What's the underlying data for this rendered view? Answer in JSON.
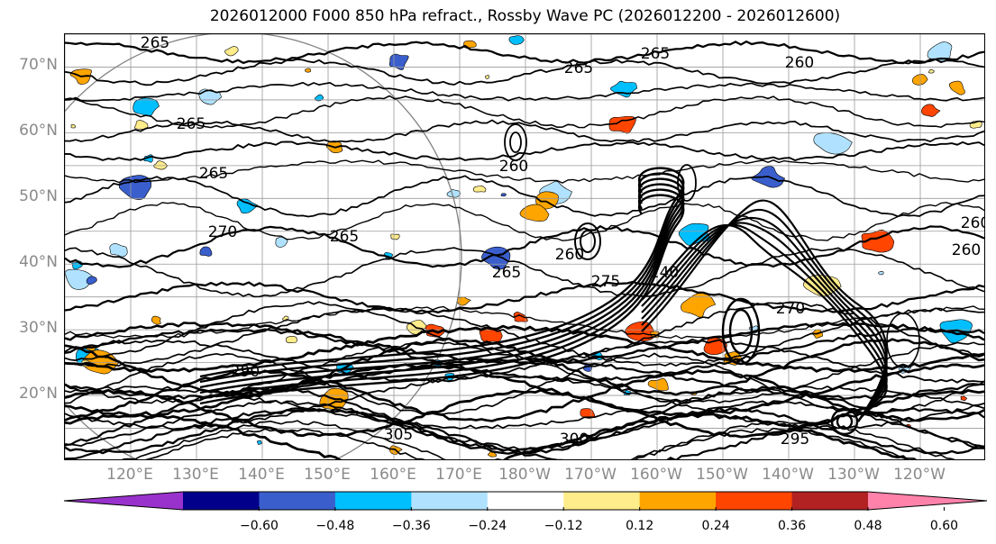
{
  "title": "2026012000 F000 850 hPa refract., Rossby Wave PC (2026012200 - 2026012600)",
  "lat_axis": {
    "labels": [
      "70°N",
      "60°N",
      "50°N",
      "40°N",
      "30°N",
      "20°N"
    ],
    "values": [
      70,
      60,
      50,
      40,
      30,
      20
    ],
    "range": [
      10,
      75
    ]
  },
  "lon_axis": {
    "labels": [
      "120°E",
      "130°E",
      "140°E",
      "150°E",
      "160°E",
      "170°E",
      "180°W",
      "170°W",
      "160°W",
      "150°W",
      "140°W",
      "130°W",
      "120°W"
    ],
    "values": [
      120,
      130,
      140,
      150,
      160,
      170,
      180,
      190,
      200,
      210,
      220,
      230,
      240
    ],
    "range": [
      110,
      250
    ]
  },
  "contour_labels": [
    "265",
    "265",
    "265",
    "265",
    "265",
    "265",
    "260",
    "265",
    "260",
    "260",
    "260",
    "270",
    "270",
    "275",
    "240",
    "290",
    "295",
    "300",
    "305",
    "260"
  ],
  "colorbar": {
    "ticks": [
      "−0.60",
      "−0.48",
      "−0.36",
      "−0.24",
      "−0.12",
      "0.12",
      "0.24",
      "0.36",
      "0.48",
      "0.60"
    ],
    "colors": [
      "#9932cc",
      "#00008b",
      "#3a5fcd",
      "#00bfff",
      "#b0e2ff",
      "#ffffff",
      "#ffec8b",
      "#ffa500",
      "#ff4500",
      "#b22222",
      "#ff82ab"
    ],
    "extend": "both"
  },
  "gridlines": true,
  "field": "850 hPa refractivity contours with Rossby Wave PC shading"
}
